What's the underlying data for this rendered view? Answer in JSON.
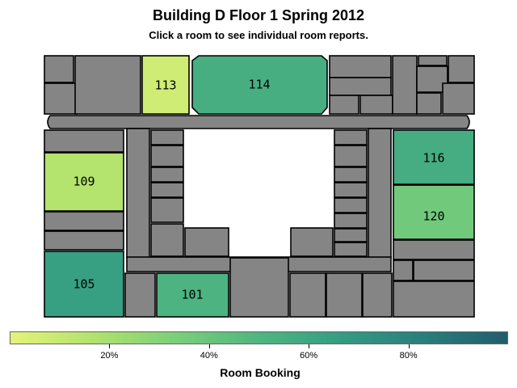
{
  "title": "Building D Floor 1 Spring 2012",
  "subtitle": "Click a room to see individual room reports.",
  "rooms": [
    {
      "id": "113",
      "label": "113",
      "booking": 0.07
    },
    {
      "id": "114",
      "label": "114",
      "booking": 0.55
    },
    {
      "id": "109",
      "label": "109",
      "booking": 0.16
    },
    {
      "id": "116",
      "label": "116",
      "booking": 0.56
    },
    {
      "id": "120",
      "label": "120",
      "booking": 0.37
    },
    {
      "id": "105",
      "label": "105",
      "booking": 0.64
    },
    {
      "id": "101",
      "label": "101",
      "booking": 0.52
    }
  ],
  "legend": {
    "title": "Room Booking",
    "ticks": [
      {
        "value": 0.2,
        "label": "20%"
      },
      {
        "value": 0.4,
        "label": "40%"
      },
      {
        "value": 0.6,
        "label": "60%"
      },
      {
        "value": 0.8,
        "label": "80%"
      }
    ],
    "colors": [
      "#e4f37a",
      "#b2e26d",
      "#7bcf79",
      "#4fb681",
      "#349c82",
      "#2a7e7b",
      "#225d6c"
    ]
  }
}
